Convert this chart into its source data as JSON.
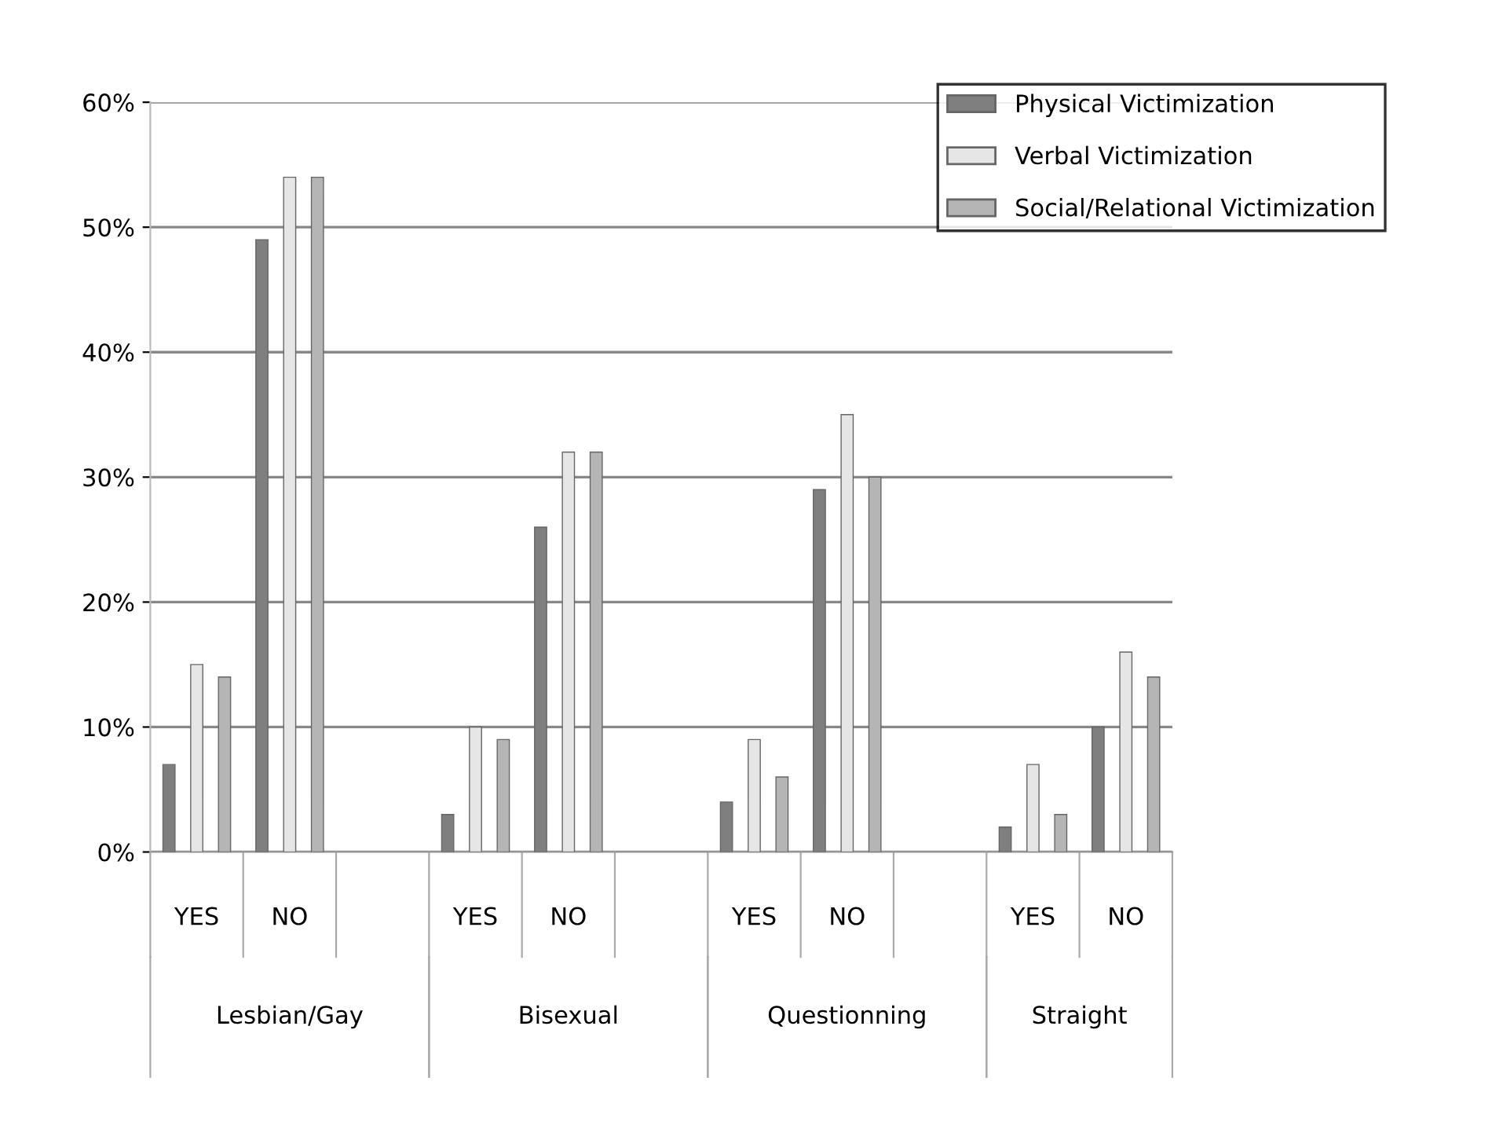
{
  "chart_data": {
    "type": "bar",
    "categories": [
      "YES",
      "NO",
      null,
      "YES",
      "NO",
      null,
      "YES",
      "NO",
      null,
      "YES",
      "NO"
    ],
    "series": [
      {
        "name": "Physical Victimization",
        "color": "#7f7f7f",
        "values": [
          7,
          49,
          null,
          3,
          26,
          null,
          4,
          29,
          null,
          2,
          10
        ]
      },
      {
        "name": "Verbal Victimization",
        "color": "#e6e6e6",
        "values": [
          15,
          54,
          null,
          10,
          32,
          null,
          9,
          35,
          null,
          7,
          16
        ]
      },
      {
        "name": "Social/Relational Victimization",
        "color": "#b5b5b5",
        "values": [
          14,
          54,
          null,
          9,
          32,
          null,
          6,
          30,
          null,
          3,
          14
        ]
      }
    ],
    "annotations": [
      "Lesbian/Gay",
      "Bisexual",
      "Questionning",
      "Straight"
    ],
    "ylim": [
      0,
      60
    ],
    "yticks": [
      {
        "value": 0,
        "label": "0%"
      },
      {
        "value": 10,
        "label": "10%"
      },
      {
        "value": 20,
        "label": "20%"
      },
      {
        "value": 30,
        "label": "30%"
      },
      {
        "value": 40,
        "label": "40%"
      },
      {
        "value": 50,
        "label": "50%"
      },
      {
        "value": 60,
        "label": "60%"
      }
    ],
    "grid": "y",
    "legend": "top right"
  }
}
